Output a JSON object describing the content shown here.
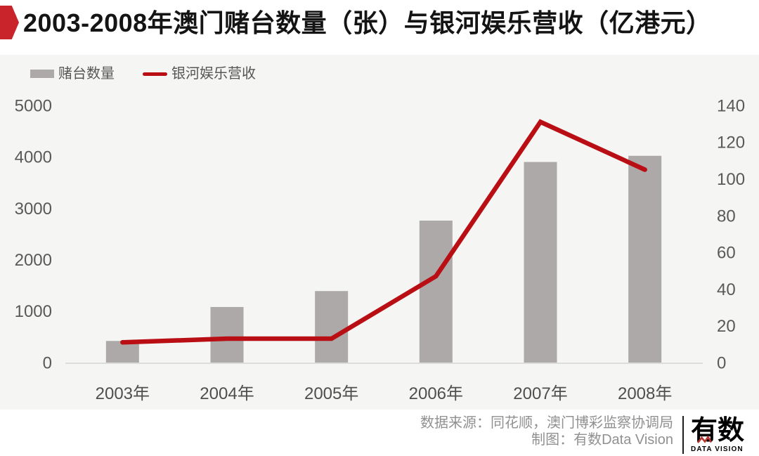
{
  "title": "2003-2008年澳门赌台数量（张）与银河娱乐营收（亿港元）",
  "legend": {
    "bar_label": "赌台数量",
    "line_label": "银河娱乐营收"
  },
  "footer": {
    "source_line": "数据来源：同花顺，澳门博彩监察协调局",
    "credit_line": "制图：有数Data Vision",
    "logo_text": "有数",
    "logo_subtext": "DATA VISION"
  },
  "colors": {
    "accent_red": "#c9242b",
    "line_red": "#b90f14",
    "bar_gray": "#aca9a8",
    "panel_bg": "#f5f5f4",
    "axis_text": "#595959",
    "x_label_text": "#4f4f4f",
    "baseline": "#dcdcdc",
    "footer_text": "#909090",
    "logo_zigzag_red": "#b5342c"
  },
  "chart_data": {
    "type": "combo",
    "title": "2003-2008年澳门赌台数量（张）与银河娱乐营收（亿港元）",
    "categories": [
      "2003年",
      "2004年",
      "2005年",
      "2006年",
      "2007年",
      "2008年"
    ],
    "series": [
      {
        "name": "赌台数量",
        "type": "bar",
        "axis": "left",
        "unit": "张",
        "color": "#aca9a8",
        "values": [
          420,
          1080,
          1390,
          2760,
          3900,
          4020
        ]
      },
      {
        "name": "银河娱乐营收",
        "type": "line",
        "axis": "right",
        "unit": "亿港元",
        "color": "#b90f14",
        "values": [
          11,
          13,
          13,
          47,
          131,
          105
        ]
      }
    ],
    "left_axis": {
      "range": [
        0,
        5000
      ],
      "ticks": [
        0,
        1000,
        2000,
        3000,
        4000,
        5000
      ]
    },
    "right_axis": {
      "range": [
        0,
        140
      ],
      "ticks": [
        0,
        20,
        40,
        60,
        80,
        100,
        120,
        140
      ]
    },
    "grid": false,
    "legend_position": "top-left"
  }
}
